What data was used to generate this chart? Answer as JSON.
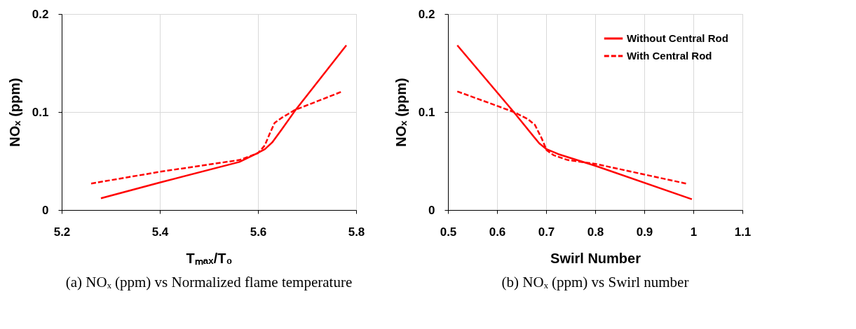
{
  "chart_data": [
    {
      "type": "line",
      "title": "(a) NOₓ (ppm) vs Normalized flame temperature",
      "xlabel": "Tₘₐₓ/T₀",
      "ylabel": "NOₓ (ppm)",
      "xlim": [
        5.2,
        5.8
      ],
      "xticks": [
        5.2,
        5.4,
        5.6,
        5.8
      ],
      "ylim": [
        0,
        0.2
      ],
      "yticks": [
        0,
        0.1,
        0.2
      ],
      "grid": true,
      "legend": false,
      "series": [
        {
          "color": "#ff0000",
          "line_style": "solid",
          "x": [
            5.28,
            5.4,
            5.562,
            5.595,
            5.614,
            5.629,
            5.648,
            5.675,
            5.78
          ],
          "values": [
            0.012,
            0.028,
            0.049,
            0.057,
            0.062,
            0.069,
            0.082,
            0.101,
            0.168
          ]
        },
        {
          "color": "#ff0000",
          "line_style": "dashed",
          "x": [
            5.26,
            5.4,
            5.562,
            5.6,
            5.614,
            5.624,
            5.634,
            5.648,
            5.675,
            5.772
          ],
          "values": [
            0.027,
            0.039,
            0.051,
            0.058,
            0.066,
            0.078,
            0.089,
            0.094,
            0.102,
            0.121
          ]
        }
      ]
    },
    {
      "type": "line",
      "title": "(b) NOₓ (ppm) vs Swirl number",
      "xlabel": "Swirl Number",
      "ylabel": "NOₓ (ppm)",
      "xlim": [
        0.5,
        1.1
      ],
      "xticks": [
        0.5,
        0.6,
        0.7,
        0.8,
        0.9,
        1,
        1.1
      ],
      "ylim": [
        0,
        0.2
      ],
      "yticks": [
        0,
        0.1,
        0.2
      ],
      "grid": true,
      "legend": "top right",
      "series": [
        {
          "name": "Without Central Rod",
          "color": "#ff0000",
          "line_style": "solid",
          "x": [
            0.519,
            0.634,
            0.686,
            0.701,
            0.725,
            0.801,
            0.997
          ],
          "values": [
            0.168,
            0.1,
            0.068,
            0.062,
            0.057,
            0.045,
            0.011
          ]
        },
        {
          "name": "With Central Rod",
          "color": "#ff0000",
          "line_style": "dashed",
          "x": [
            0.519,
            0.596,
            0.634,
            0.662,
            0.677,
            0.691,
            0.701,
            0.715,
            0.744,
            0.801,
            0.985
          ],
          "values": [
            0.121,
            0.107,
            0.1,
            0.093,
            0.087,
            0.073,
            0.061,
            0.056,
            0.051,
            0.047,
            0.027
          ]
        }
      ]
    }
  ]
}
